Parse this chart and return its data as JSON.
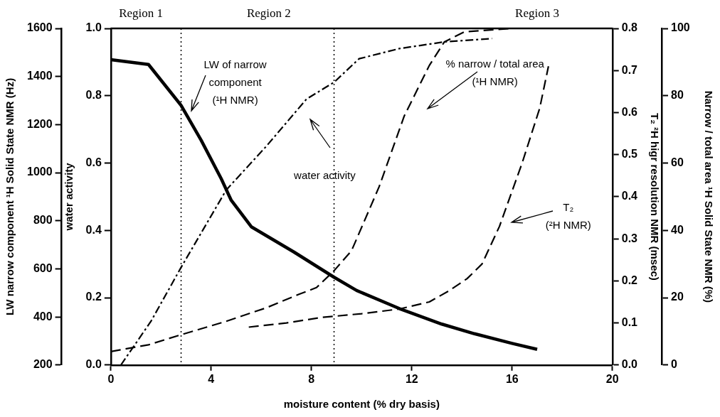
{
  "chart_data": [
    {
      "type": "line",
      "xlabel": "moisture content (% dry basis)",
      "ylabel": "LW narrow component ¹H Solid State NMR (Hz)",
      "y2label": "water activity",
      "y3label": "T₂ ²H higr resolution NMR (msec)",
      "xlim": [
        0,
        20
      ],
      "xticks": [
        0,
        4,
        8,
        12,
        16,
        20
      ],
      "ylim": [
        200,
        1600
      ],
      "yticks": [
        200,
        400,
        600,
        800,
        1000,
        1200,
        1400,
        1600
      ],
      "y2lim": [
        0,
        1
      ],
      "y2ticks": [
        {
          "value": 0,
          "label": "0.0"
        },
        {
          "value": 0.2,
          "label": "0.2"
        },
        {
          "value": 0.4,
          "label": "0.4"
        },
        {
          "value": 0.6,
          "label": "0.6"
        },
        {
          "value": 0.8,
          "label": "0.8"
        },
        {
          "value": 1,
          "label": "1.0"
        }
      ],
      "y3lim": [
        0,
        0.8
      ],
      "y3ticks": [
        {
          "value": 0,
          "label": "0.0"
        },
        {
          "value": 0.1,
          "label": "0.1"
        },
        {
          "value": 0.2,
          "label": "0.2"
        },
        {
          "value": 0.3,
          "label": "0.3"
        },
        {
          "value": 0.4,
          "label": "0.4"
        },
        {
          "value": 0.5,
          "label": "0.5"
        },
        {
          "value": 0.6,
          "label": "0.6"
        },
        {
          "value": 0.7,
          "label": "0.7"
        },
        {
          "value": 0.8,
          "label": "0.8"
        }
      ],
      "series": [
        {
          "color": "#000000",
          "line_style": "solid",
          "x": [
            0,
            1.5,
            2.8,
            3.6,
            4.4,
            4.8,
            5.6,
            7.3,
            8.9,
            9.8,
            11.5,
            13.2,
            14.5,
            16,
            17
          ],
          "values": [
            1470,
            1450,
            1280,
            1135,
            975,
            885,
            775,
            670,
            565,
            510,
            435,
            370,
            330,
            290,
            265
          ]
        },
        {
          "color": "#000000",
          "line_style": "dashdot",
          "axis": "y2",
          "x": [
            0.4,
            1.6,
            2.8,
            4.6,
            6.2,
            7.8,
            8.9,
            9.9,
            11.5,
            13.3,
            15.2
          ],
          "values": [
            0.0,
            0.13,
            0.29,
            0.52,
            0.65,
            0.79,
            0.84,
            0.91,
            0.94,
            0.96,
            0.97
          ]
        },
        {
          "color": "#000000",
          "line_style": "dashed",
          "axis": "y3",
          "x": [
            5.5,
            7,
            8.4,
            10,
            11.5,
            12.7,
            13.5,
            14.2,
            14.8,
            15.5,
            16.4,
            17.1,
            17.45
          ],
          "values": [
            0.09,
            0.1,
            0.113,
            0.122,
            0.133,
            0.15,
            0.177,
            0.205,
            0.24,
            0.33,
            0.48,
            0.61,
            0.71
          ]
        }
      ],
      "ref_lines": [
        {
          "axis": "x",
          "value": 2.8,
          "line_style": "dotted",
          "color": "#000000"
        },
        {
          "axis": "x",
          "value": 8.9,
          "line_style": "dotted",
          "color": "#000000"
        }
      ],
      "annotations": [
        "Region 1",
        "Region 2",
        "Region 3",
        "LW of narrow component (¹H NMR)",
        "water activity",
        "% narrow / total area (¹H NMR)",
        "T₂ (²H NMR)"
      ]
    },
    {
      "type": "line",
      "tick_labels": "y",
      "ylabel": "Narrow / total area ¹H Solid State NMR (%)",
      "xlim": [
        0,
        20
      ],
      "ylim": [
        0,
        100
      ],
      "yticks": [
        0,
        20,
        40,
        60,
        80,
        100
      ],
      "series": [
        {
          "color": "#000000",
          "line_style": "dashed",
          "x": [
            0,
            1.5,
            2.8,
            4.6,
            6.2,
            7.5,
            8.2,
            8.9,
            9.6,
            10.7,
            11.7,
            12.7,
            13.3,
            14.1,
            16,
            18.3
          ],
          "values": [
            4,
            6,
            9,
            13,
            17,
            21,
            23,
            28,
            34,
            53,
            74,
            89,
            96,
            99,
            100,
            100
          ]
        }
      ]
    }
  ]
}
